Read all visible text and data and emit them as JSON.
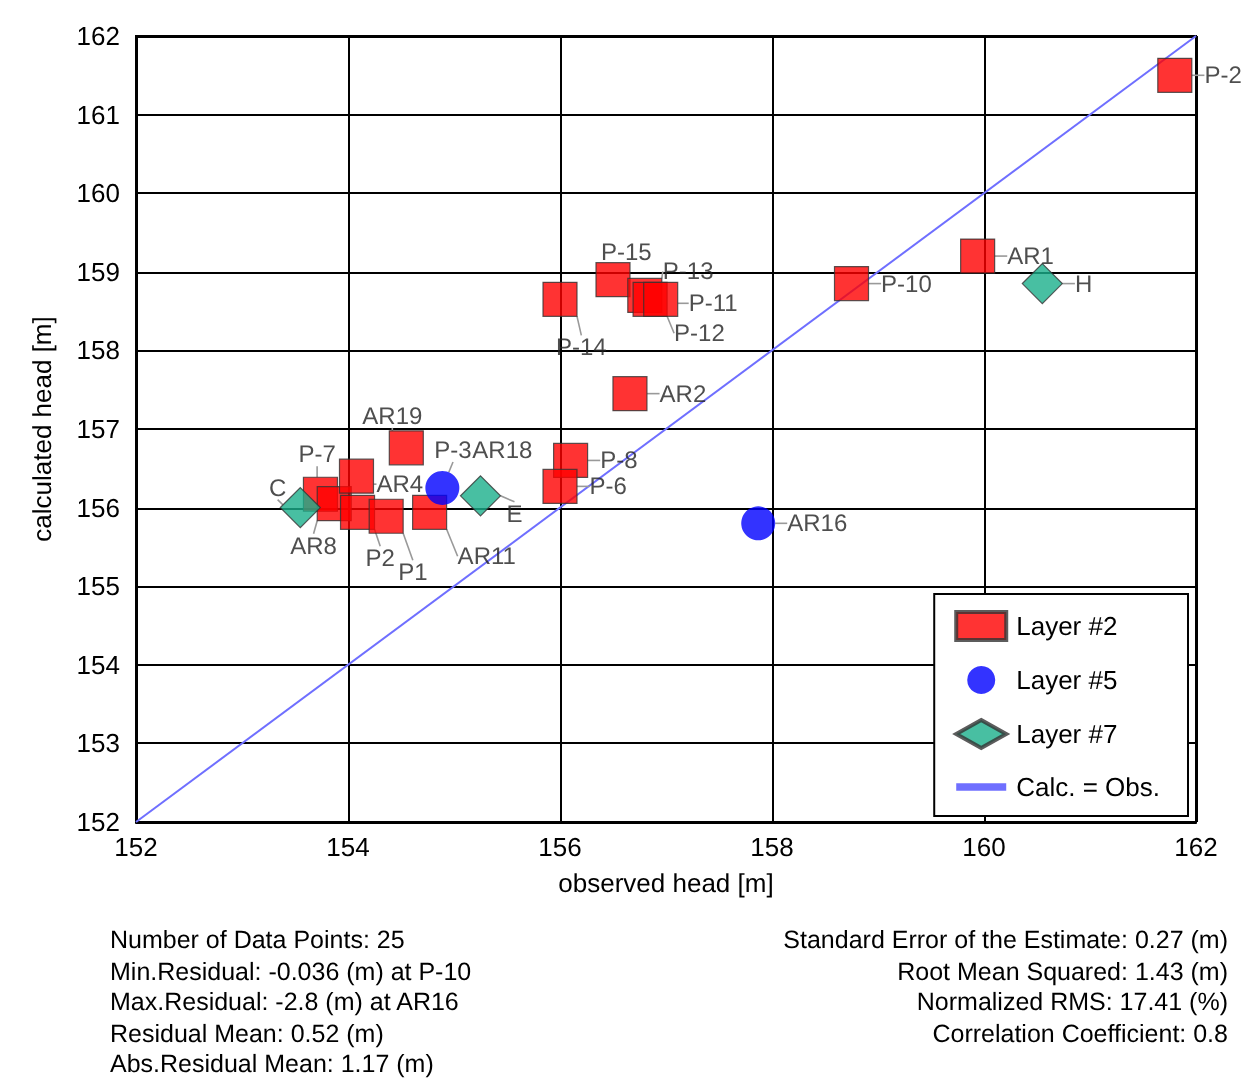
{
  "chart_data": {
    "type": "scatter",
    "xlabel": "observed head [m]",
    "ylabel": "calculated head [m]",
    "xlim": [
      152,
      162
    ],
    "xticks": [
      152,
      154,
      156,
      158,
      160,
      162
    ],
    "ylim": [
      152,
      162
    ],
    "yticks": [
      152,
      153,
      154,
      155,
      156,
      157,
      158,
      159,
      160,
      161,
      162
    ],
    "grid": true,
    "legend": "bottom right",
    "series": [
      {
        "name": "Layer #2",
        "color": "#ff0000",
        "marker": "square",
        "x": [
          161.8,
          159.94,
          158.75,
          156.5,
          156.0,
          156.8,
          156.85,
          156.95,
          156.66,
          156.1,
          156.0,
          153.74,
          153.87,
          154.08,
          154.55,
          154.09,
          154.36,
          154.77
        ],
        "values": [
          161.5,
          159.2,
          158.85,
          158.9,
          158.65,
          158.7,
          158.65,
          158.65,
          157.45,
          156.6,
          156.27,
          156.17,
          156.05,
          156.4,
          156.76,
          155.94,
          155.89,
          155.94
        ],
        "value_labels": [
          "P-2",
          "AR1",
          "P-10",
          "P-15",
          "P-14",
          "P-13",
          "P-12",
          "P-11",
          "AR2",
          "P-8",
          "P-6",
          "P-7",
          "AR8",
          "AR4",
          "AR19",
          "P2",
          "P1",
          "AR11"
        ]
      },
      {
        "name": "Layer #5",
        "color": "#0000ff",
        "marker": "circle",
        "x": [
          157.87,
          154.89
        ],
        "values": [
          155.8,
          156.25
        ],
        "value_labels": [
          "AR16",
          "P-3"
        ]
      },
      {
        "name": "Layer #7",
        "color": "#1aaf8b",
        "marker": "diamond",
        "x": [
          160.55,
          153.55,
          155.25
        ],
        "values": [
          158.85,
          156.0,
          156.15
        ],
        "value_labels": [
          "H",
          "C",
          "E"
        ]
      },
      {
        "name": "Calc. = Obs.",
        "type": "line",
        "color": "#6f6fff",
        "marker": "none",
        "x": [
          152,
          162
        ],
        "values": [
          152,
          162
        ]
      }
    ],
    "annotations": [
      {
        "text": "AR18",
        "x": 154.89,
        "y": 156.25
      },
      "Number of Data Points: 25",
      "Min.Residual: -0.036 (m) at P-10",
      "Max.Residual: -2.8 (m) at AR16",
      "Residual Mean: 0.52 (m)",
      "Abs.Residual Mean: 1.17 (m)",
      "Standard Error of the Estimate: 0.27 (m)",
      "Root Mean Squared: 1.43 (m)",
      "Normalized RMS: 17.41 (%)",
      "Correlation Coefficient: 0.8"
    ]
  }
}
